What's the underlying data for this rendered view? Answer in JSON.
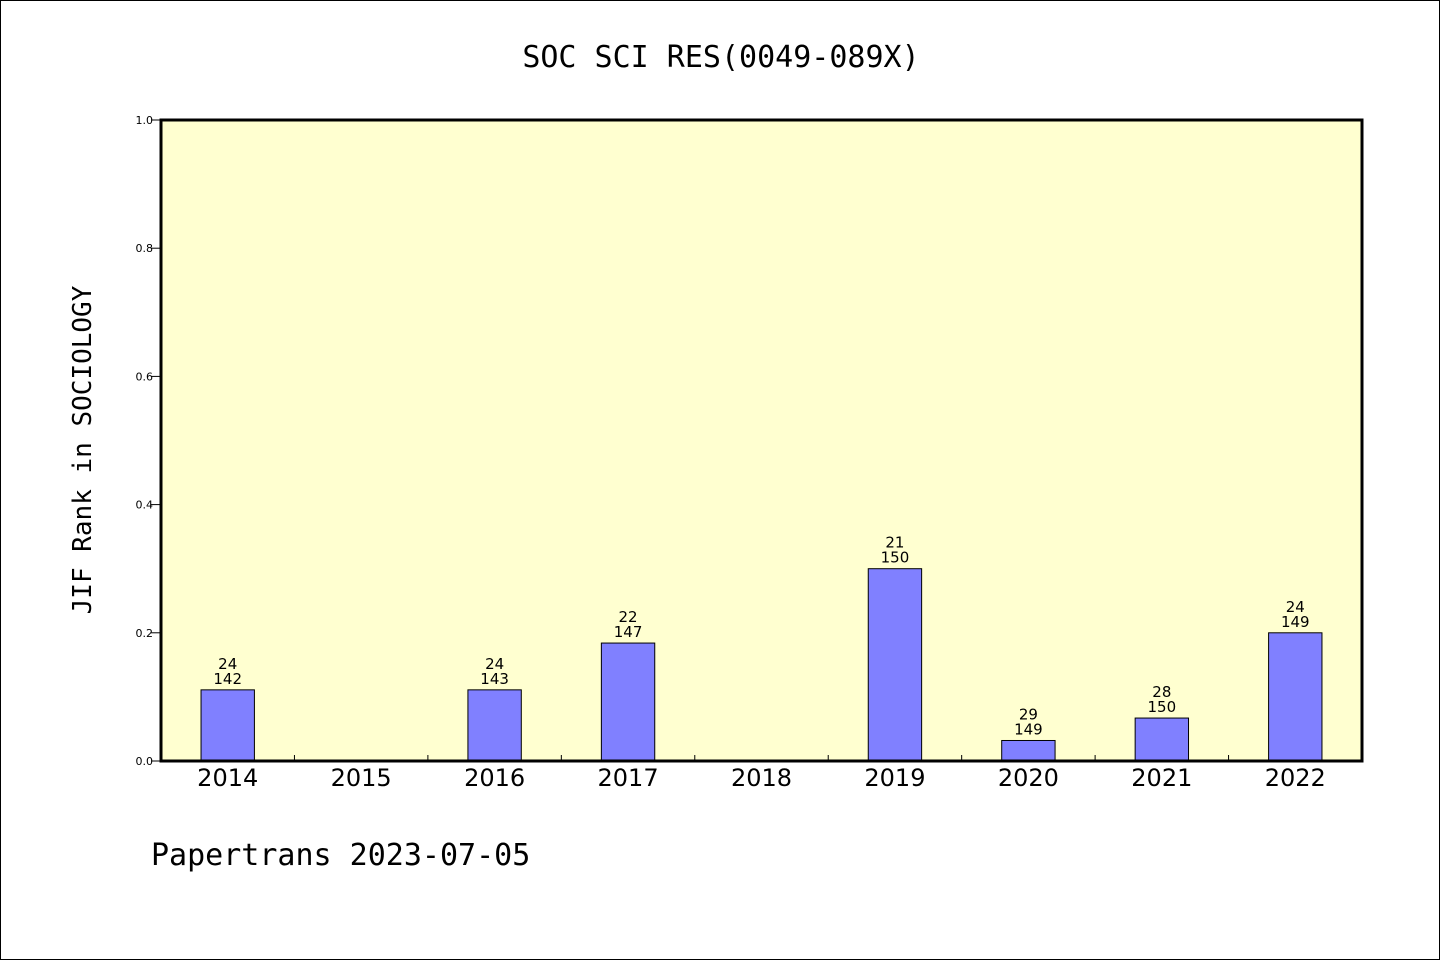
{
  "chart_data": {
    "type": "bar",
    "title": "SOC SCI RES(0049-089X)",
    "ylabel": "JIF Rank in SOCIOLOGY",
    "xlabel": "",
    "ylim": [
      0,
      1.0
    ],
    "yticks": [
      "0.0",
      "0.2",
      "0.4",
      "0.6",
      "0.8",
      "1.0"
    ],
    "categories": [
      "2014",
      "2015",
      "2016",
      "2017",
      "2018",
      "2019",
      "2020",
      "2021",
      "2022"
    ],
    "values": [
      0.111,
      null,
      0.111,
      0.184,
      null,
      0.3,
      0.032,
      0.067,
      0.2
    ],
    "rank": [
      "24",
      "",
      "24",
      "22",
      "",
      "21",
      "29",
      "28",
      "24"
    ],
    "total": [
      "142",
      "",
      "143",
      "147",
      "",
      "150",
      "149",
      "150",
      "149"
    ],
    "grid": false,
    "legend": "none",
    "colors": {
      "plot_background": "#ffffd0",
      "bar_fill": "#8080ff",
      "bar_stroke": "#000000"
    }
  },
  "footer": {
    "text": "Papertrans 2023-07-05"
  }
}
